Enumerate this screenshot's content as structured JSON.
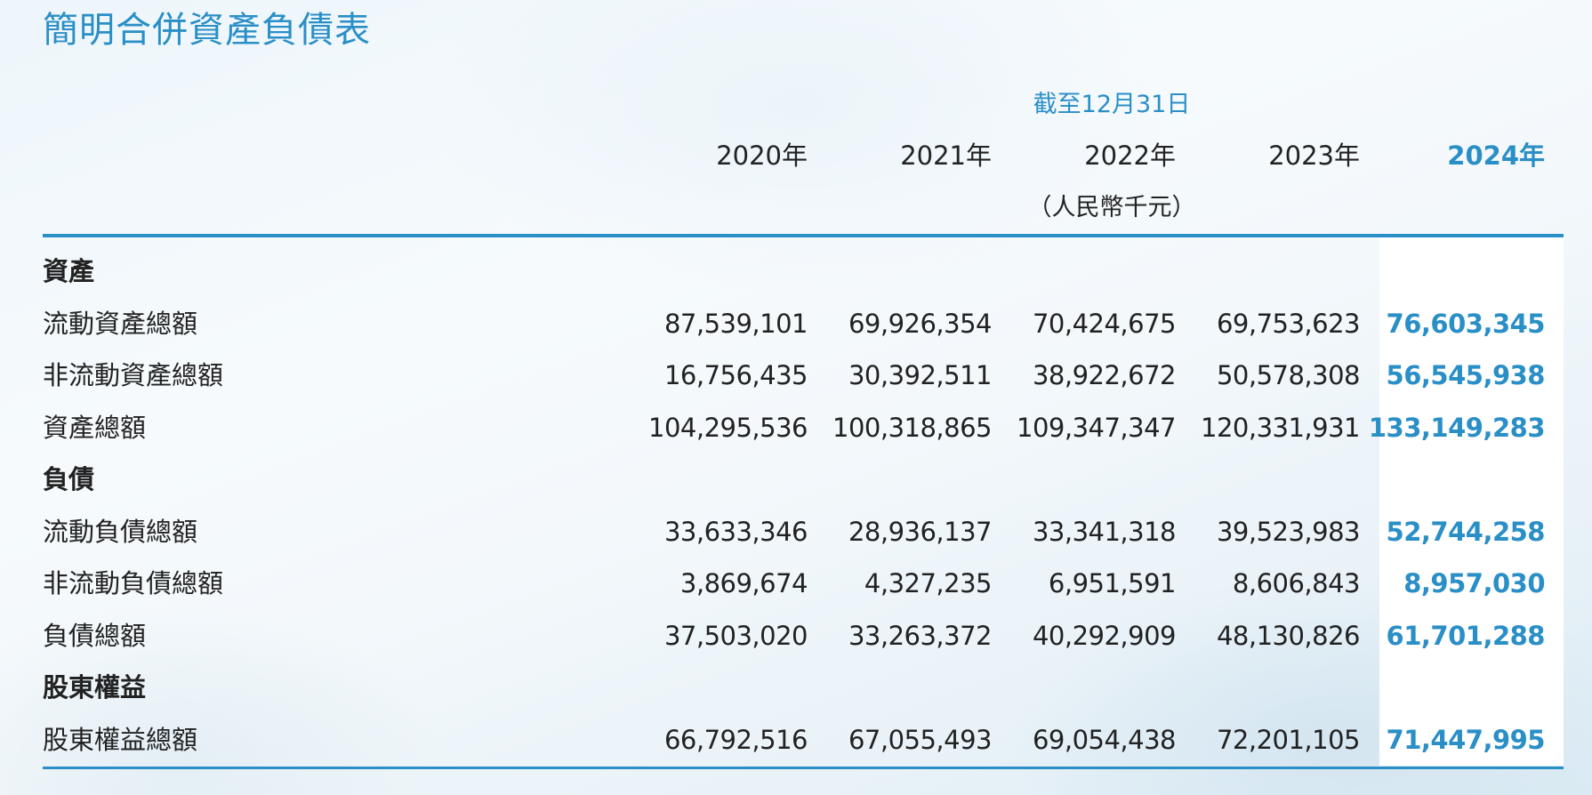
{
  "title": "簡明合併資產負債表",
  "header": {
    "period_label": "截至12月31日",
    "years": [
      "2020年",
      "2021年",
      "2022年",
      "2023年",
      "2024年"
    ],
    "unit": "（人民幣千元）"
  },
  "rows": [
    {
      "type": "section",
      "label": "資產",
      "values": []
    },
    {
      "type": "data",
      "label": "流動資產總額",
      "values": [
        "87,539,101",
        "69,926,354",
        "70,424,675",
        "69,753,623",
        "76,603,345"
      ]
    },
    {
      "type": "data",
      "label": "非流動資產總額",
      "values": [
        "16,756,435",
        "30,392,511",
        "38,922,672",
        "50,578,308",
        "56,545,938"
      ]
    },
    {
      "type": "data",
      "label": "資產總額",
      "values": [
        "104,295,536",
        "100,318,865",
        "109,347,347",
        "120,331,931",
        "133,149,283"
      ]
    },
    {
      "type": "section",
      "label": "負債",
      "values": []
    },
    {
      "type": "data",
      "label": "流動負債總額",
      "values": [
        "33,633,346",
        "28,936,137",
        "33,341,318",
        "39,523,983",
        "52,744,258"
      ]
    },
    {
      "type": "data",
      "label": "非流動負債總額",
      "values": [
        "3,869,674",
        "4,327,235",
        "6,951,591",
        "8,606,843",
        "8,957,030"
      ]
    },
    {
      "type": "data",
      "label": "負債總額",
      "values": [
        "37,503,020",
        "33,263,372",
        "40,292,909",
        "48,130,826",
        "61,701,288"
      ]
    },
    {
      "type": "section",
      "label": "股東權益",
      "values": []
    },
    {
      "type": "data",
      "label": "股東權益總額",
      "values": [
        "66,792,516",
        "67,055,493",
        "69,054,438",
        "72,201,105",
        "71,447,995"
      ]
    }
  ],
  "colors": {
    "accent": "#2a8fc6",
    "text": "#222222",
    "highlight_bg": "#ffffff"
  }
}
